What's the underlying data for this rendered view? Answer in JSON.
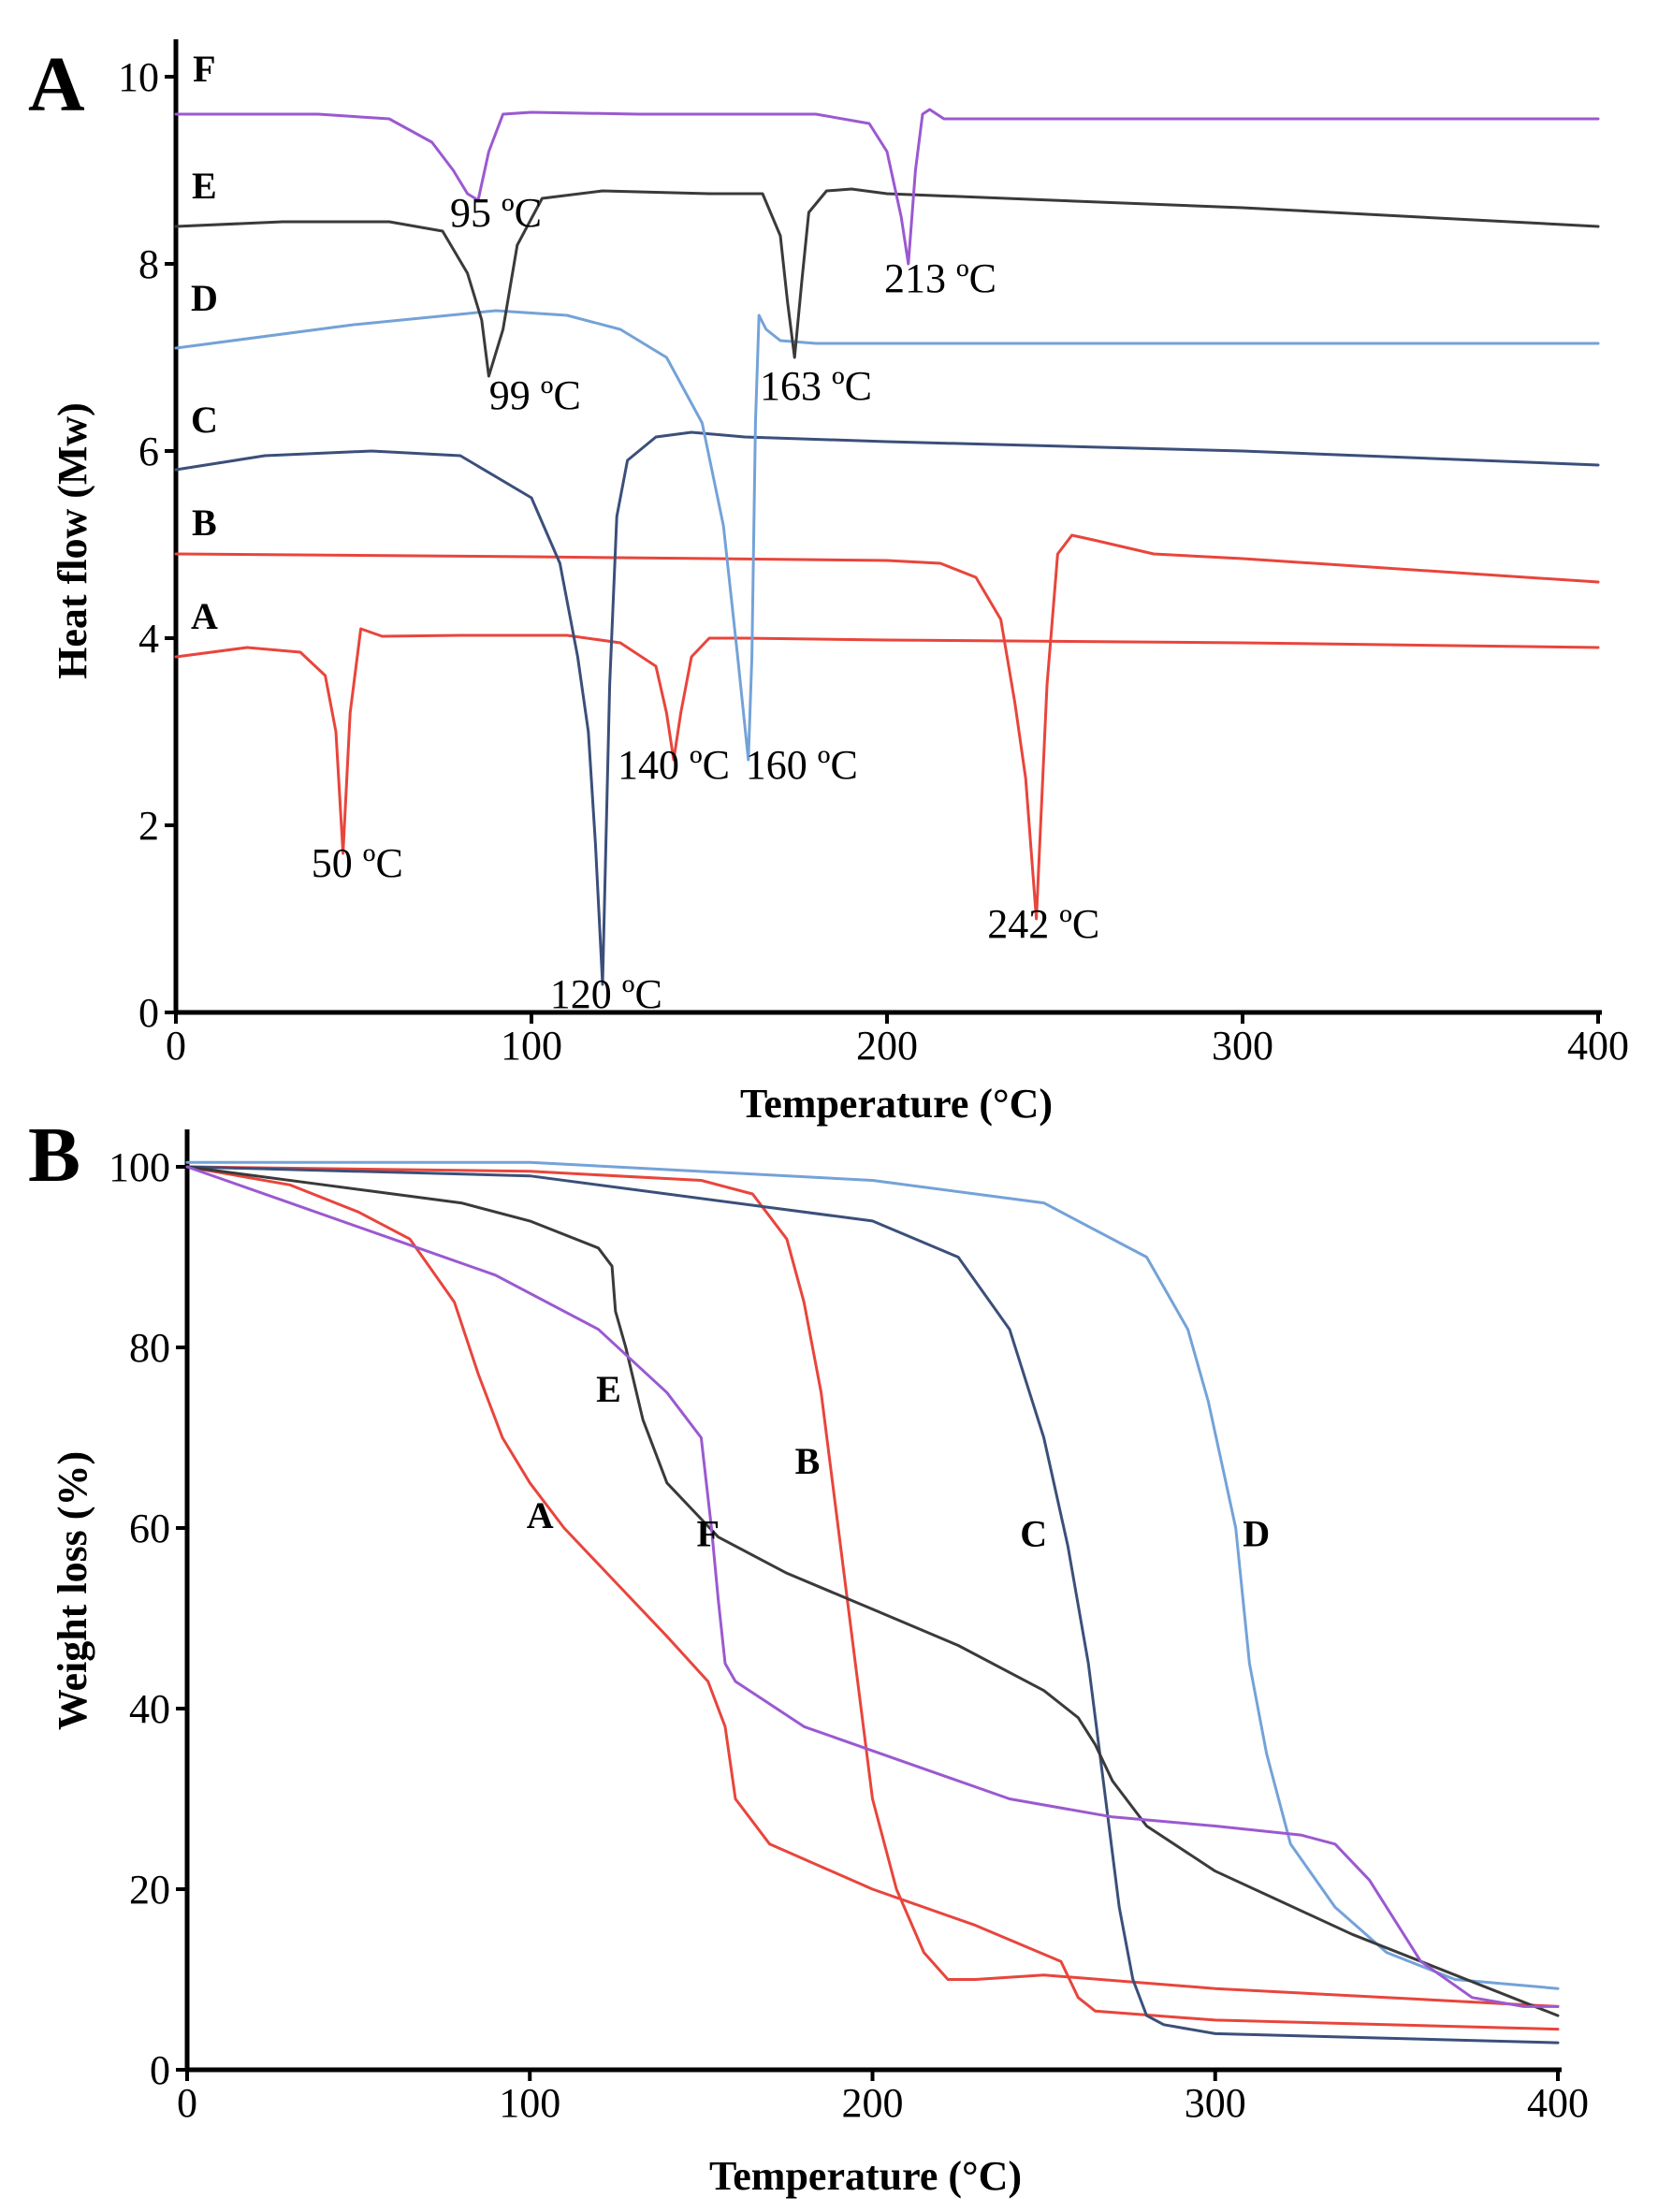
{
  "colors": {
    "A": "#e8453c",
    "B": "#e8453c",
    "C": "#3b4f7a",
    "D": "#74a2d8",
    "E": "#3a3a3a",
    "F": "#9b59d0"
  },
  "chart_data": [
    {
      "type": "line",
      "panel_label": "A",
      "title": "",
      "xlabel": "Temperature (°C)",
      "ylabel": "Heat flow (Mw)",
      "xlim": [
        0,
        400
      ],
      "ylim": [
        0,
        10
      ],
      "x_ticks": [
        "0",
        "100",
        "200",
        "300",
        "400"
      ],
      "y_ticks": [
        "0",
        "2",
        "4",
        "6",
        "8",
        "10"
      ],
      "x_tick_values": [
        0,
        100,
        200,
        300,
        400
      ],
      "y_tick_values": [
        0,
        2,
        4,
        6,
        8,
        10
      ],
      "grid": false,
      "series": [
        {
          "name": "A",
          "label": "A",
          "x": [
            0,
            20,
            35,
            42,
            45,
            47,
            49,
            52,
            58,
            80,
            110,
            125,
            135,
            138,
            140,
            142,
            145,
            150,
            160,
            200,
            300,
            400
          ],
          "y": [
            3.8,
            3.9,
            3.85,
            3.6,
            3.0,
            1.7,
            3.2,
            4.1,
            4.02,
            4.03,
            4.03,
            3.95,
            3.7,
            3.2,
            2.7,
            3.2,
            3.8,
            4.0,
            4.0,
            3.98,
            3.95,
            3.9
          ]
        },
        {
          "name": "B",
          "label": "B",
          "x": [
            0,
            100,
            200,
            215,
            225,
            232,
            236,
            239,
            242,
            245,
            248,
            252,
            258,
            275,
            300,
            400
          ],
          "y": [
            4.9,
            4.87,
            4.83,
            4.8,
            4.65,
            4.2,
            3.3,
            2.5,
            1.0,
            3.5,
            4.9,
            5.1,
            5.05,
            4.9,
            4.85,
            4.6
          ]
        },
        {
          "name": "C",
          "label": "C",
          "x": [
            0,
            25,
            55,
            80,
            100,
            108,
            113,
            116,
            118,
            120,
            122,
            124,
            127,
            135,
            145,
            160,
            200,
            300,
            400
          ],
          "y": [
            5.8,
            5.95,
            6.0,
            5.95,
            5.5,
            4.8,
            3.8,
            3.0,
            1.8,
            0.3,
            3.5,
            5.3,
            5.9,
            6.15,
            6.2,
            6.15,
            6.1,
            6.0,
            5.85
          ]
        },
        {
          "name": "D",
          "label": "D",
          "x": [
            0,
            50,
            90,
            110,
            125,
            138,
            148,
            154,
            158,
            161,
            162,
            163,
            164,
            166,
            170,
            180,
            200,
            300,
            400
          ],
          "y": [
            7.1,
            7.35,
            7.5,
            7.45,
            7.3,
            7.0,
            6.3,
            5.2,
            3.8,
            2.7,
            3.8,
            6.3,
            7.45,
            7.3,
            7.18,
            7.15,
            7.15,
            7.15,
            7.15
          ]
        },
        {
          "name": "E",
          "label": "E",
          "x": [
            0,
            30,
            60,
            75,
            82,
            86,
            88,
            92,
            96,
            103,
            120,
            150,
            165,
            170,
            172,
            174,
            176,
            178,
            183,
            190,
            200,
            300,
            400
          ],
          "y": [
            8.4,
            8.45,
            8.45,
            8.35,
            7.9,
            7.4,
            6.8,
            7.3,
            8.2,
            8.7,
            8.78,
            8.75,
            8.75,
            8.3,
            7.6,
            7.0,
            7.8,
            8.55,
            8.78,
            8.8,
            8.75,
            8.6,
            8.4
          ]
        },
        {
          "name": "F",
          "label": "F",
          "x": [
            0,
            40,
            60,
            72,
            78,
            82,
            85,
            88,
            92,
            100,
            130,
            180,
            195,
            200,
            204,
            206,
            208,
            210,
            212,
            216,
            220,
            300,
            400
          ],
          "y": [
            9.6,
            9.6,
            9.55,
            9.3,
            9.0,
            8.75,
            8.68,
            9.2,
            9.6,
            9.62,
            9.6,
            9.6,
            9.5,
            9.2,
            8.5,
            8.0,
            9.0,
            9.6,
            9.65,
            9.55,
            9.55,
            9.55,
            9.55
          ]
        }
      ],
      "annotations": [
        {
          "text": "50 ºC",
          "x": 51,
          "y": 1.45
        },
        {
          "text": "120 ºC",
          "x": 121,
          "y": 0.05
        },
        {
          "text": "140 ºC",
          "x": 140,
          "y": 2.5
        },
        {
          "text": "160 ºC",
          "x": 176,
          "y": 2.5
        },
        {
          "text": "242 ºC",
          "x": 244,
          "y": 0.8
        },
        {
          "text": "99 ºC",
          "x": 101,
          "y": 6.45
        },
        {
          "text": "163 ºC",
          "x": 180,
          "y": 6.55
        },
        {
          "text": "95 ºC",
          "x": 90,
          "y": 8.4
        },
        {
          "text": "213 ºC",
          "x": 215,
          "y": 7.7
        }
      ],
      "series_labels": [
        {
          "text": "A",
          "x": 8,
          "y": 4.1
        },
        {
          "text": "B",
          "x": 8,
          "y": 5.1
        },
        {
          "text": "C",
          "x": 8,
          "y": 6.2
        },
        {
          "text": "D",
          "x": 8,
          "y": 7.5
        },
        {
          "text": "E",
          "x": 8,
          "y": 8.7
        },
        {
          "text": "F",
          "x": 8,
          "y": 9.95
        }
      ]
    },
    {
      "type": "line",
      "panel_label": "B",
      "title": "",
      "xlabel": "Temperature (°C)",
      "ylabel": "Weight loss (%)",
      "xlim": [
        0,
        400
      ],
      "ylim": [
        0,
        100
      ],
      "x_ticks": [
        "0",
        "100",
        "200",
        "300",
        "400"
      ],
      "y_ticks": [
        "0",
        "20",
        "40",
        "60",
        "80",
        "100"
      ],
      "x_tick_values": [
        0,
        100,
        200,
        300,
        400
      ],
      "y_tick_values": [
        0,
        20,
        40,
        60,
        80,
        100
      ],
      "grid": false,
      "series": [
        {
          "name": "A",
          "label": "A",
          "x": [
            0,
            30,
            50,
            65,
            78,
            85,
            92,
            100,
            110,
            125,
            140,
            152,
            157,
            160,
            170,
            200,
            230,
            255,
            260,
            265,
            300,
            350,
            400
          ],
          "y": [
            100,
            98,
            95,
            92,
            85,
            77,
            70,
            65,
            60,
            54,
            48,
            43,
            38,
            30,
            25,
            20,
            16,
            12,
            8,
            6.5,
            5.5,
            5,
            4.5
          ]
        },
        {
          "name": "B",
          "label": "B",
          "x": [
            0,
            100,
            150,
            165,
            175,
            180,
            185,
            190,
            195,
            200,
            207,
            215,
            222,
            230,
            250,
            300,
            400
          ],
          "y": [
            100,
            99.5,
            98.5,
            97,
            92,
            85,
            75,
            60,
            45,
            30,
            20,
            13,
            10,
            10,
            10.5,
            9,
            7
          ]
        },
        {
          "name": "C",
          "label": "C",
          "x": [
            0,
            100,
            200,
            225,
            240,
            250,
            257,
            263,
            268,
            272,
            276,
            280,
            285,
            300,
            400
          ],
          "y": [
            100,
            99,
            94,
            90,
            82,
            70,
            58,
            45,
            30,
            18,
            10,
            6,
            5,
            4,
            3
          ]
        },
        {
          "name": "D",
          "label": "D",
          "x": [
            0,
            100,
            200,
            250,
            280,
            292,
            298,
            302,
            306,
            310,
            315,
            322,
            335,
            350,
            370,
            400
          ],
          "y": [
            100.5,
            100.5,
            98.5,
            96,
            90,
            82,
            74,
            67,
            60,
            45,
            35,
            25,
            18,
            13,
            10,
            9
          ]
        },
        {
          "name": "E",
          "label": "E",
          "x": [
            0,
            40,
            80,
            100,
            120,
            124,
            125,
            128,
            133,
            140,
            155,
            175,
            200,
            225,
            250,
            260,
            265,
            270,
            280,
            300,
            340,
            400
          ],
          "y": [
            100,
            98,
            96,
            94,
            91,
            89,
            84,
            80,
            72,
            65,
            59,
            55,
            51,
            47,
            42,
            39,
            36,
            32,
            27,
            22,
            15,
            6
          ]
        },
        {
          "name": "F",
          "label": "F",
          "x": [
            0,
            30,
            60,
            90,
            120,
            140,
            150,
            153,
            155,
            157,
            160,
            168,
            180,
            210,
            240,
            270,
            300,
            325,
            335,
            345,
            360,
            375,
            390,
            400
          ],
          "y": [
            100,
            96,
            92,
            88,
            82,
            75,
            70,
            60,
            52,
            45,
            43,
            41,
            38,
            34,
            30,
            28,
            27,
            26,
            25,
            21,
            12,
            8,
            7,
            7
          ]
        }
      ],
      "series_labels": [
        {
          "text": "A",
          "x": 103,
          "y": 60
        },
        {
          "text": "B",
          "x": 181,
          "y": 66
        },
        {
          "text": "C",
          "x": 247,
          "y": 58
        },
        {
          "text": "D",
          "x": 312,
          "y": 58
        },
        {
          "text": "E",
          "x": 123,
          "y": 74
        },
        {
          "text": "F",
          "x": 152,
          "y": 58
        }
      ]
    }
  ]
}
